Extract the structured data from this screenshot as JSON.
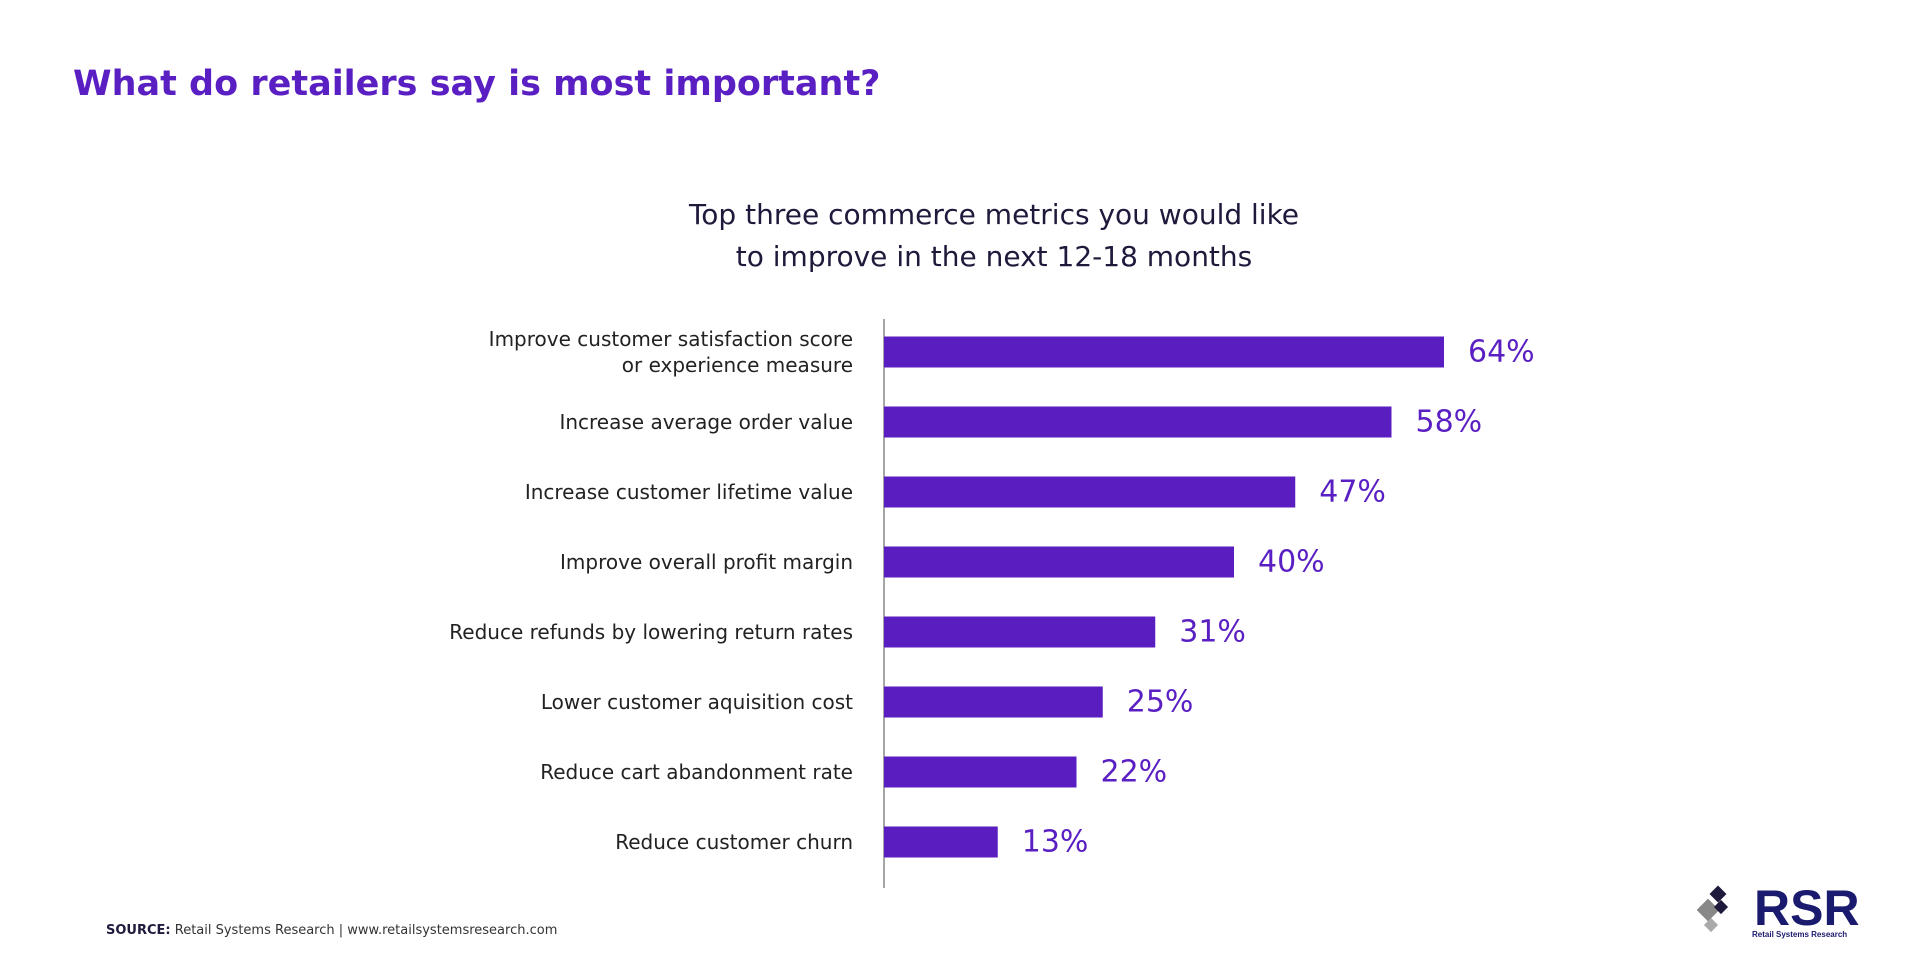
{
  "title": "What do retailers say is most important?",
  "chart_data": {
    "type": "bar",
    "orientation": "horizontal",
    "title": "Top three commerce metrics you would like\nto improve in the next 12-18 months",
    "categories": [
      "Improve customer satisfaction score\nor experience measure",
      "Increase average order value",
      "Increase customer lifetime value",
      "Improve overall profit margin",
      "Reduce refunds by lowering return rates",
      "Lower customer aquisition cost",
      "Reduce cart abandonment rate",
      "Reduce customer churn"
    ],
    "values": [
      64,
      58,
      47,
      40,
      31,
      25,
      22,
      13
    ],
    "value_labels": [
      "64%",
      "58%",
      "47%",
      "40%",
      "31%",
      "25%",
      "22%",
      "13%"
    ],
    "color": "#5a1ec0",
    "xlim": [
      0,
      100
    ]
  },
  "source": {
    "label": "SOURCE:",
    "text": "Retail Systems Research | www.retailsystemsresearch.com"
  },
  "logo": {
    "text": "RSR",
    "subtitle": "Retail Systems Research"
  }
}
